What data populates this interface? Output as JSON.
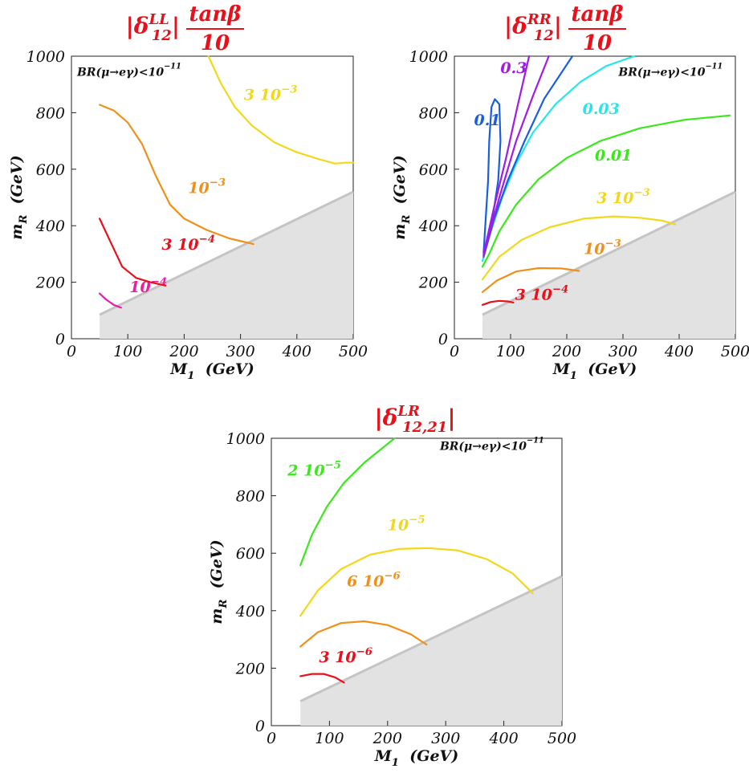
{
  "chart_data": [
    {
      "type": "line",
      "title": {
        "prefix": "|δ",
        "sup": "LL",
        "sub": "12",
        "suffix": "|",
        "frac_num": "tanβ",
        "frac_den": "10"
      },
      "xlabel": {
        "base": "M",
        "sub": "1",
        "units": "(GeV)"
      },
      "ylabel": {
        "base": "m",
        "sub": "R",
        "units": "(GeV)"
      },
      "xlim": [
        0,
        500
      ],
      "ylim": [
        0,
        1000
      ],
      "xticks": [
        "0",
        "100",
        "200",
        "300",
        "400",
        "500"
      ],
      "yticks": [
        "0",
        "200",
        "400",
        "600",
        "800",
        "1000"
      ],
      "annotation": {
        "base": "BR(μ→eγ)<10",
        "sup": "−11"
      },
      "excluded_region": [
        [
          50,
          0
        ],
        [
          50,
          85
        ],
        [
          500,
          520
        ],
        [
          500,
          0
        ]
      ],
      "series": [
        {
          "color": "#e91ea0",
          "label": {
            "base": "10",
            "sup": "−4"
          },
          "points": [
            [
              50,
              160
            ],
            [
              62,
              138
            ],
            [
              75,
              120
            ],
            [
              88,
              110
            ]
          ]
        },
        {
          "color": "#e8101a",
          "label": {
            "base": "3 10",
            "sup": "−4"
          },
          "points": [
            [
              50,
              425
            ],
            [
              70,
              340
            ],
            [
              90,
              255
            ],
            [
              115,
              215
            ],
            [
              140,
              200
            ],
            [
              167,
              188
            ]
          ]
        },
        {
          "color": "#f0901a",
          "label": {
            "base": "10",
            "sup": "−3"
          },
          "points": [
            [
              50,
              828
            ],
            [
              75,
              808
            ],
            [
              100,
              765
            ],
            [
              125,
              690
            ],
            [
              150,
              575
            ],
            [
              175,
              475
            ],
            [
              200,
              425
            ],
            [
              240,
              385
            ],
            [
              280,
              355
            ],
            [
              323,
              335
            ]
          ]
        },
        {
          "color": "#f2d81a",
          "label": {
            "base": "3 10",
            "sup": "−3"
          },
          "points": [
            [
              243,
              1000
            ],
            [
              265,
              905
            ],
            [
              290,
              820
            ],
            [
              320,
              755
            ],
            [
              360,
              695
            ],
            [
              400,
              660
            ],
            [
              440,
              635
            ],
            [
              468,
              620
            ],
            [
              485,
              623
            ],
            [
              500,
              623
            ]
          ]
        }
      ]
    },
    {
      "type": "line",
      "title": {
        "prefix": "|δ",
        "sup": "RR",
        "sub": "12",
        "suffix": "|",
        "frac_num": "tanβ",
        "frac_den": "10"
      },
      "xlabel": {
        "base": "M",
        "sub": "1",
        "units": "(GeV)"
      },
      "ylabel": {
        "base": "m",
        "sub": "R",
        "units": "(GeV)"
      },
      "xlim": [
        0,
        500
      ],
      "ylim": [
        0,
        1000
      ],
      "xticks": [
        "0",
        "100",
        "200",
        "300",
        "400",
        "500"
      ],
      "yticks": [
        "0",
        "200",
        "400",
        "600",
        "800",
        "1000"
      ],
      "annotation": {
        "base": "BR(μ→eγ)<10",
        "sup": "−11"
      },
      "excluded_region": [
        [
          50,
          0
        ],
        [
          50,
          85
        ],
        [
          500,
          520
        ],
        [
          500,
          0
        ]
      ],
      "series": [
        {
          "color": "#e8101a",
          "label": {
            "base": "3 10",
            "sup": "−4"
          },
          "points": [
            [
              50,
              120
            ],
            [
              65,
              130
            ],
            [
              80,
              134
            ],
            [
              95,
              132
            ],
            [
              105,
              128
            ]
          ]
        },
        {
          "color": "#f0901a",
          "label": {
            "base": "10",
            "sup": "−3"
          },
          "points": [
            [
              50,
              165
            ],
            [
              75,
              205
            ],
            [
              110,
              238
            ],
            [
              150,
              250
            ],
            [
              190,
              249
            ],
            [
              222,
              240
            ]
          ]
        },
        {
          "color": "#f2d81a",
          "label": {
            "base": "3 10",
            "sup": "−3"
          },
          "points": [
            [
              50,
              210
            ],
            [
              80,
              290
            ],
            [
              120,
              350
            ],
            [
              170,
              395
            ],
            [
              230,
              425
            ],
            [
              285,
              433
            ],
            [
              330,
              428
            ],
            [
              370,
              418
            ],
            [
              393,
              405
            ]
          ]
        },
        {
          "color": "#3be81a",
          "label": {
            "base": "0.01",
            "sup": ""
          },
          "points": [
            [
              50,
              255
            ],
            [
              62,
              300
            ],
            [
              80,
              380
            ],
            [
              110,
              475
            ],
            [
              150,
              565
            ],
            [
              200,
              640
            ],
            [
              260,
              700
            ],
            [
              330,
              745
            ],
            [
              410,
              775
            ],
            [
              490,
              790
            ]
          ]
        },
        {
          "color": "#22e8ea",
          "label": {
            "base": "0.03",
            "sup": ""
          },
          "points": [
            [
              50,
              275
            ],
            [
              65,
              380
            ],
            [
              85,
              500
            ],
            [
              110,
              620
            ],
            [
              140,
              730
            ],
            [
              180,
              830
            ],
            [
              225,
              910
            ],
            [
              270,
              965
            ],
            [
              320,
              1000
            ]
          ]
        },
        {
          "color": "#1a5de0",
          "label": {
            "base": "0.1",
            "sup": ""
          },
          "points": [
            [
              52,
              305
            ],
            [
              60,
              560
            ],
            [
              62,
              700
            ],
            [
              66,
              820
            ],
            [
              72,
              848
            ],
            [
              80,
              830
            ],
            [
              82,
              700
            ],
            [
              78,
              560
            ],
            [
              66,
              400
            ],
            [
              55,
              315
            ]
          ]
        },
        {
          "color": "#1a5de0",
          "label": {
            "base": "",
            "sup": ""
          },
          "points": [
            [
              52,
              290
            ],
            [
              70,
              420
            ],
            [
              95,
              560
            ],
            [
              125,
              700
            ],
            [
              160,
              850
            ],
            [
              210,
              1000
            ]
          ]
        },
        {
          "color": "#a01ae8",
          "label": {
            "base": "0.3",
            "sup": ""
          },
          "points": [
            [
              52,
              300
            ],
            [
              70,
              460
            ],
            [
              92,
              640
            ],
            [
              112,
              820
            ],
            [
              133,
              1000
            ]
          ]
        },
        {
          "color": "#a01ae8",
          "label": {
            "base": "",
            "sup": ""
          },
          "points": [
            [
              52,
              295
            ],
            [
              80,
              500
            ],
            [
              110,
              700
            ],
            [
              140,
              860
            ],
            [
              168,
              1000
            ]
          ]
        }
      ]
    },
    {
      "type": "line",
      "title": {
        "prefix": "|δ",
        "sup": "LR",
        "sub": "12,21",
        "suffix": "|",
        "frac_num": "",
        "frac_den": ""
      },
      "xlabel": {
        "base": "M",
        "sub": "1",
        "units": "(GeV)"
      },
      "ylabel": {
        "base": "m",
        "sub": "R",
        "units": "(GeV)"
      },
      "xlim": [
        0,
        500
      ],
      "ylim": [
        0,
        1000
      ],
      "xticks": [
        "0",
        "100",
        "200",
        "300",
        "400",
        "500"
      ],
      "yticks": [
        "0",
        "200",
        "400",
        "600",
        "800",
        "1000"
      ],
      "annotation": {
        "base": "BR(μ→eγ)<10",
        "sup": "−11"
      },
      "excluded_region": [
        [
          50,
          0
        ],
        [
          50,
          85
        ],
        [
          500,
          520
        ],
        [
          500,
          0
        ]
      ],
      "series": [
        {
          "color": "#e8101a",
          "label": {
            "base": "3 10",
            "sup": "−6"
          },
          "points": [
            [
              50,
              172
            ],
            [
              70,
              180
            ],
            [
              90,
              180
            ],
            [
              110,
              168
            ],
            [
              125,
              150
            ]
          ]
        },
        {
          "color": "#f0901a",
          "label": {
            "base": "6 10",
            "sup": "−6"
          },
          "points": [
            [
              50,
              275
            ],
            [
              80,
              325
            ],
            [
              120,
              357
            ],
            [
              160,
              363
            ],
            [
              200,
              350
            ],
            [
              240,
              318
            ],
            [
              267,
              282
            ]
          ]
        },
        {
          "color": "#f2d81a",
          "label": {
            "base": "10",
            "sup": "−5"
          },
          "points": [
            [
              50,
              382
            ],
            [
              80,
              470
            ],
            [
              120,
              545
            ],
            [
              170,
              595
            ],
            [
              220,
              615
            ],
            [
              270,
              618
            ],
            [
              320,
              610
            ],
            [
              370,
              580
            ],
            [
              415,
              530
            ],
            [
              450,
              460
            ]
          ]
        },
        {
          "color": "#3be81a",
          "label": {
            "base": "2 10",
            "sup": "−5"
          },
          "points": [
            [
              50,
              558
            ],
            [
              70,
              665
            ],
            [
              95,
              760
            ],
            [
              125,
              845
            ],
            [
              160,
              915
            ],
            [
              212,
              1000
            ]
          ]
        }
      ]
    }
  ]
}
